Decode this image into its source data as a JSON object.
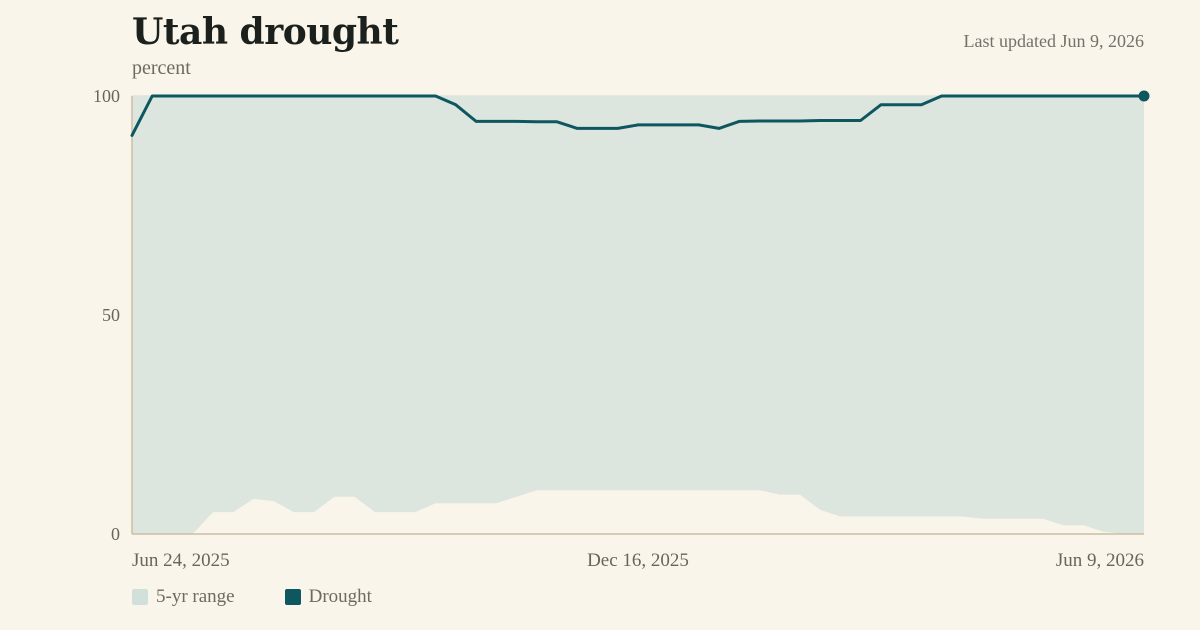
{
  "header": {
    "title": "Utah drought",
    "subtitle": "percent",
    "last_updated": "Last updated Jun 9, 2026"
  },
  "legend": {
    "range_label": "5-yr range",
    "drought_label": "Drought"
  },
  "colors": {
    "background": "#f9f5eb",
    "range_fill": "#dce6df",
    "range_swatch": "#d2e0dc",
    "drought_line": "#0e5660",
    "axis": "#cbbfa4"
  },
  "chart_data": {
    "type": "area",
    "title": "Utah drought",
    "ylabel": "percent",
    "xlabel": "",
    "ylim": [
      0,
      100
    ],
    "y_ticks": [
      0,
      50,
      100
    ],
    "x_tick_labels": [
      "Jun 24, 2025",
      "Dec 16, 2025",
      "Jun 9, 2026"
    ],
    "grid": true,
    "legend_position": "bottom-left",
    "x_start": "2025-06-24",
    "x_end": "2026-06-09",
    "series": [
      {
        "name": "5-yr range",
        "type": "band",
        "dates": [
          "2025-06-24",
          "2025-07-01",
          "2025-07-08",
          "2025-07-15",
          "2025-07-22",
          "2025-07-29",
          "2025-08-05",
          "2025-08-12",
          "2025-08-19",
          "2025-08-26",
          "2025-09-02",
          "2025-09-09",
          "2025-09-16",
          "2025-09-23",
          "2025-09-30",
          "2025-10-07",
          "2025-10-14",
          "2025-10-21",
          "2025-10-28",
          "2025-11-04",
          "2025-11-11",
          "2025-11-18",
          "2025-11-25",
          "2025-12-02",
          "2025-12-09",
          "2025-12-16",
          "2025-12-23",
          "2025-12-30",
          "2026-01-06",
          "2026-01-13",
          "2026-01-20",
          "2026-01-27",
          "2026-02-03",
          "2026-02-10",
          "2026-02-17",
          "2026-02-24",
          "2026-03-03",
          "2026-03-10",
          "2026-03-17",
          "2026-03-24",
          "2026-03-31",
          "2026-04-07",
          "2026-04-14",
          "2026-04-21",
          "2026-04-28",
          "2026-05-05",
          "2026-05-12",
          "2026-05-19",
          "2026-05-26",
          "2026-06-02",
          "2026-06-09"
        ],
        "low": [
          0,
          0,
          0,
          0,
          5,
          5,
          8,
          7.5,
          5,
          5,
          8.5,
          8.5,
          5,
          5,
          5,
          7,
          7,
          7,
          7,
          8.5,
          10,
          10,
          10,
          10,
          10,
          10,
          10,
          10,
          10,
          10,
          10,
          10,
          9,
          9,
          5.5,
          4,
          4,
          4,
          4,
          4,
          4,
          4,
          3.5,
          3.5,
          3.5,
          3.5,
          2,
          2,
          0.5,
          0,
          0
        ],
        "high": [
          100,
          100,
          100,
          100,
          100,
          100,
          100,
          100,
          100,
          100,
          100,
          100,
          100,
          100,
          100,
          100,
          100,
          100,
          100,
          100,
          100,
          100,
          100,
          100,
          100,
          100,
          100,
          100,
          100,
          100,
          100,
          100,
          100,
          100,
          100,
          100,
          100,
          100,
          100,
          100,
          100,
          100,
          100,
          100,
          100,
          100,
          100,
          100,
          100,
          100,
          100
        ]
      },
      {
        "name": "Drought",
        "type": "line",
        "dates": [
          "2025-06-24",
          "2025-07-01",
          "2025-07-08",
          "2025-07-15",
          "2025-07-22",
          "2025-07-29",
          "2025-08-05",
          "2025-08-12",
          "2025-08-19",
          "2025-08-26",
          "2025-09-02",
          "2025-09-09",
          "2025-09-16",
          "2025-09-23",
          "2025-09-30",
          "2025-10-07",
          "2025-10-14",
          "2025-10-21",
          "2025-10-28",
          "2025-11-04",
          "2025-11-11",
          "2025-11-18",
          "2025-11-25",
          "2025-12-02",
          "2025-12-09",
          "2025-12-16",
          "2025-12-23",
          "2025-12-30",
          "2026-01-06",
          "2026-01-13",
          "2026-01-20",
          "2026-01-27",
          "2026-02-03",
          "2026-02-10",
          "2026-02-17",
          "2026-02-24",
          "2026-03-03",
          "2026-03-10",
          "2026-03-17",
          "2026-03-24",
          "2026-03-31",
          "2026-04-07",
          "2026-04-14",
          "2026-04-21",
          "2026-04-28",
          "2026-05-05",
          "2026-05-12",
          "2026-05-19",
          "2026-05-26",
          "2026-06-02",
          "2026-06-09"
        ],
        "values": [
          91,
          100,
          100,
          100,
          100,
          100,
          100,
          100,
          100,
          100,
          100,
          100,
          100,
          100,
          100,
          100,
          98,
          94.2,
          94.2,
          94.2,
          94.1,
          94.1,
          92.6,
          92.6,
          92.6,
          93.4,
          93.4,
          93.4,
          93.4,
          92.6,
          94.2,
          94.3,
          94.3,
          94.3,
          94.4,
          94.4,
          94.4,
          98,
          98,
          98,
          100,
          100,
          100,
          100,
          100,
          100,
          100,
          100,
          100,
          100,
          100
        ]
      }
    ]
  }
}
